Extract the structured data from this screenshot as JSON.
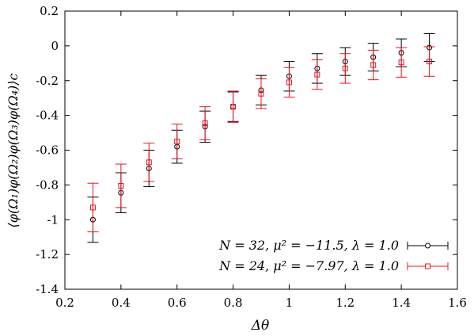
{
  "chart_data": {
    "type": "scatter",
    "title": "",
    "xlabel": "Δθ",
    "ylabel": "⟨φ(Ω₁)φ(Ω₂)φ(Ω₃)φ(Ω₄)⟩c",
    "xlim": [
      0.2,
      1.6
    ],
    "ylim": [
      -1.4,
      0.2
    ],
    "xticks": [
      0.2,
      0.4,
      0.6,
      0.8,
      1,
      1.2,
      1.4,
      1.6
    ],
    "xtick_labels": [
      "0.2",
      "0.4",
      "0.6",
      "0.8",
      "1",
      "1.2",
      "1.4",
      "1.6"
    ],
    "yticks": [
      0.2,
      0,
      -0.2,
      -0.4,
      -0.6,
      -0.8,
      -1,
      -1.2,
      -1.4
    ],
    "ytick_labels": [
      "0.2",
      "0",
      "-0.2",
      "-0.4",
      "-0.6",
      "-0.8",
      "-1",
      "-1.2",
      "-1.4"
    ],
    "grid": false,
    "legend_position": "bottom-right",
    "series": [
      {
        "name": "N = 32, μ² = −11.5, λ = 1.0",
        "color": "#000000",
        "marker": "circle",
        "x": [
          0.3,
          0.4,
          0.5,
          0.6,
          0.7,
          0.8,
          0.9,
          1.0,
          1.1,
          1.2,
          1.3,
          1.4,
          1.5
        ],
        "y": [
          -1.0,
          -0.845,
          -0.705,
          -0.58,
          -0.465,
          -0.35,
          -0.255,
          -0.175,
          -0.13,
          -0.09,
          -0.065,
          -0.04,
          -0.01
        ],
        "err": [
          0.13,
          0.115,
          0.105,
          0.095,
          0.09,
          0.085,
          0.085,
          0.085,
          0.085,
          0.08,
          0.08,
          0.08,
          0.08
        ]
      },
      {
        "name": "N = 24, μ² = −7.97, λ = 1.0",
        "color": "#e8141c",
        "marker": "square",
        "x": [
          0.3,
          0.4,
          0.5,
          0.6,
          0.7,
          0.8,
          0.9,
          1.0,
          1.1,
          1.2,
          1.3,
          1.4,
          1.5
        ],
        "y": [
          -0.93,
          -0.805,
          -0.67,
          -0.55,
          -0.445,
          -0.35,
          -0.275,
          -0.21,
          -0.165,
          -0.13,
          -0.11,
          -0.095,
          -0.09
        ],
        "err": [
          0.14,
          0.125,
          0.11,
          0.1,
          0.095,
          0.09,
          0.085,
          0.085,
          0.085,
          0.085,
          0.085,
          0.085,
          0.085
        ]
      }
    ]
  }
}
